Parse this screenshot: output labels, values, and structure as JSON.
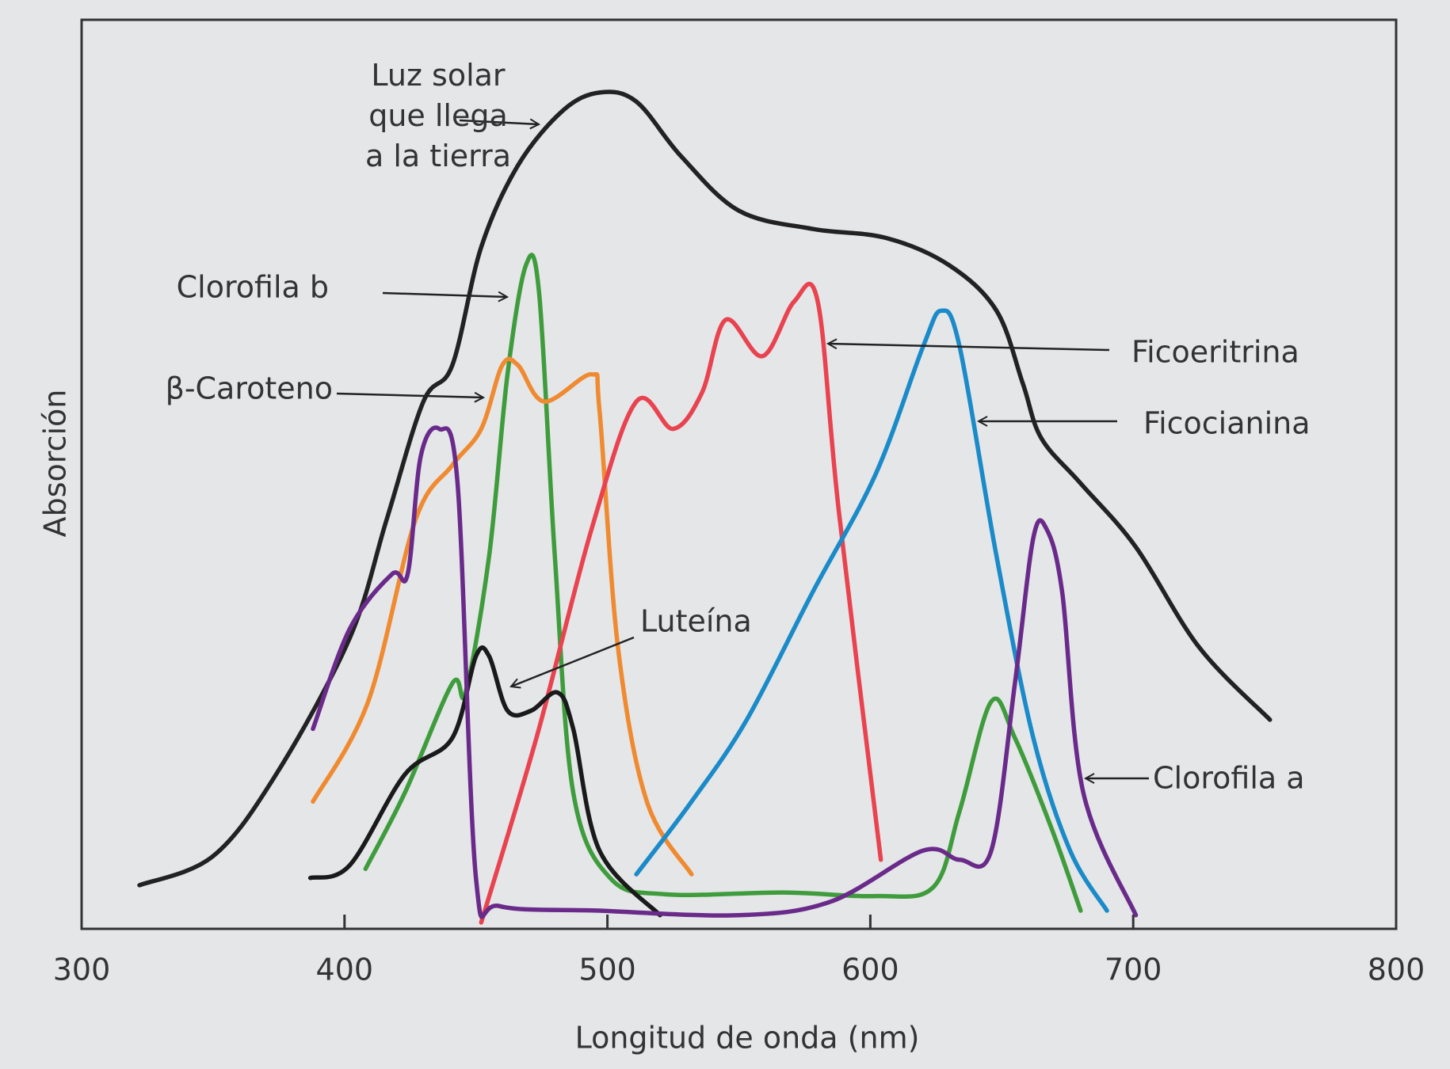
{
  "chart_data": {
    "type": "line",
    "xlabel": "Longitud de onda (nm)",
    "ylabel": "Absorción",
    "xlim": [
      300,
      800
    ],
    "xticks": [
      300,
      400,
      500,
      600,
      700,
      800
    ],
    "ylim": [
      0,
      1
    ],
    "series": [
      {
        "name": "Luz solar que llega a la tierra",
        "color": "#222222",
        "x": [
          322,
          350,
          374,
          402,
          416,
          430,
          441,
          452,
          466,
          483,
          497,
          511,
          528,
          550,
          578,
          606,
          630,
          648,
          658,
          665,
          680,
          701,
          725,
          752
        ],
        "values": [
          0.048,
          0.08,
          0.17,
          0.32,
          0.45,
          0.58,
          0.62,
          0.75,
          0.84,
          0.9,
          0.92,
          0.91,
          0.85,
          0.79,
          0.77,
          0.76,
          0.73,
          0.68,
          0.6,
          0.54,
          0.49,
          0.42,
          0.31,
          0.23
        ]
      },
      {
        "name": "Clorofila b",
        "color": "#3f9c3c",
        "x": [
          408,
          423,
          441,
          446,
          455,
          462,
          469,
          474,
          480,
          487,
          501,
          522,
          567,
          602,
          624,
          634,
          646,
          655,
          669,
          680
        ],
        "values": [
          0.066,
          0.15,
          0.27,
          0.26,
          0.41,
          0.61,
          0.73,
          0.7,
          0.41,
          0.15,
          0.056,
          0.038,
          0.04,
          0.036,
          0.046,
          0.13,
          0.25,
          0.21,
          0.11,
          0.02
        ]
      },
      {
        "name": "β-Caroteno",
        "color": "#f08a30",
        "x": [
          388,
          409,
          427,
          441,
          452,
          460,
          466,
          476,
          494,
          497,
          504,
          515,
          532
        ],
        "values": [
          0.14,
          0.25,
          0.45,
          0.51,
          0.55,
          0.62,
          0.62,
          0.58,
          0.61,
          0.57,
          0.31,
          0.14,
          0.06
        ]
      },
      {
        "name": "Ficoeritrina",
        "color": "#e8434f",
        "x": [
          452,
          473,
          494,
          511,
          525,
          536,
          545,
          559,
          571,
          580,
          588,
          604
        ],
        "values": [
          0.007,
          0.21,
          0.44,
          0.58,
          0.55,
          0.59,
          0.67,
          0.63,
          0.69,
          0.69,
          0.46,
          0.076
        ]
      },
      {
        "name": "Ficocianina",
        "color": "#1a8ac8",
        "x": [
          511,
          532,
          553,
          578,
          602,
          620,
          627,
          634,
          648,
          662,
          676,
          690
        ],
        "values": [
          0.06,
          0.14,
          0.23,
          0.37,
          0.5,
          0.64,
          0.68,
          0.64,
          0.41,
          0.21,
          0.086,
          0.02
        ]
      },
      {
        "name": "Luteína",
        "color": "#1a1a1a",
        "x": [
          387,
          402,
          423,
          441,
          450,
          455,
          462,
          471,
          481,
          487,
          497,
          520
        ],
        "values": [
          0.056,
          0.07,
          0.17,
          0.21,
          0.3,
          0.3,
          0.24,
          0.24,
          0.26,
          0.22,
          0.086,
          0.015
        ]
      },
      {
        "name": "Clorofila a",
        "color": "#6a2a8a",
        "x": [
          388,
          402,
          418,
          424,
          429,
          436,
          443,
          450,
          459,
          497,
          550,
          585,
          620,
          634,
          646,
          655,
          662,
          667,
          673,
          681,
          701
        ],
        "values": [
          0.22,
          0.33,
          0.39,
          0.39,
          0.52,
          0.55,
          0.49,
          0.056,
          0.025,
          0.02,
          0.015,
          0.03,
          0.086,
          0.076,
          0.086,
          0.27,
          0.43,
          0.44,
          0.37,
          0.15,
          0.015
        ]
      }
    ]
  }
}
